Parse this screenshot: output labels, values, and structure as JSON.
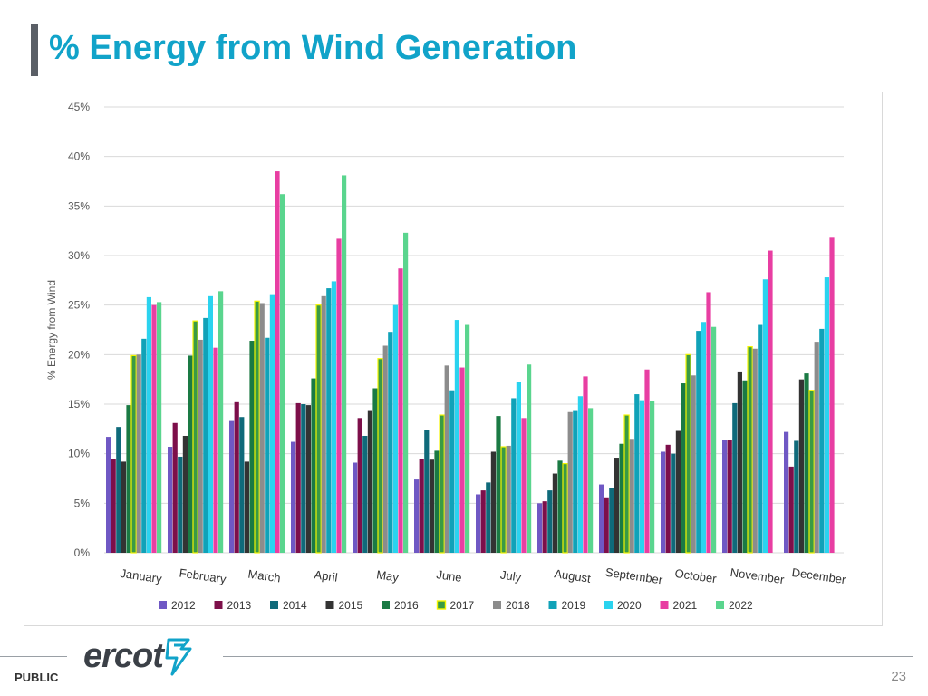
{
  "page": {
    "title": "% Energy from Wind Generation",
    "footer_label": "PUBLIC",
    "page_number": "23",
    "logo_text": "ercot"
  },
  "colors": {
    "title": "#11a3c9",
    "gridline": "#d9d9d9",
    "axis_text": "#595959"
  },
  "chart_data": {
    "type": "bar",
    "ylabel": "% Energy from Wind",
    "xlabel": "",
    "ylim": [
      0,
      45
    ],
    "yticks": [
      0,
      5,
      10,
      15,
      20,
      25,
      30,
      35,
      40,
      45
    ],
    "ytick_labels": [
      "0%",
      "5%",
      "10%",
      "15%",
      "20%",
      "25%",
      "30%",
      "35%",
      "40%",
      "45%"
    ],
    "grid": true,
    "legend_position": "bottom",
    "categories": [
      "January",
      "February",
      "March",
      "April",
      "May",
      "June",
      "July",
      "August",
      "September",
      "October",
      "November",
      "December"
    ],
    "series": [
      {
        "name": "2012",
        "color": "#6f58c4",
        "values": [
          11.7,
          10.7,
          13.3,
          11.2,
          9.1,
          7.4,
          5.9,
          5.0,
          6.9,
          10.2,
          11.4,
          12.2
        ]
      },
      {
        "name": "2013",
        "color": "#7d0f4a",
        "values": [
          9.5,
          13.1,
          15.2,
          15.1,
          13.6,
          9.5,
          6.3,
          5.2,
          5.6,
          10.9,
          11.4,
          8.7
        ]
      },
      {
        "name": "2014",
        "color": "#0f6a7a",
        "values": [
          12.7,
          9.7,
          13.7,
          15.0,
          11.8,
          12.4,
          7.1,
          6.3,
          6.5,
          10.0,
          15.1,
          11.3
        ]
      },
      {
        "name": "2015",
        "color": "#333333",
        "values": [
          9.2,
          11.8,
          9.2,
          14.9,
          14.4,
          9.4,
          10.2,
          8.0,
          9.6,
          12.3,
          18.3,
          17.5
        ]
      },
      {
        "name": "2016",
        "color": "#1a7a44",
        "values": [
          14.9,
          19.9,
          21.4,
          17.6,
          16.6,
          10.3,
          13.8,
          9.3,
          11.0,
          17.1,
          17.4,
          18.1
        ]
      },
      {
        "name": "2017",
        "color": "#3a9a45",
        "border": "#f5f500",
        "values": [
          19.9,
          23.4,
          25.4,
          25.0,
          19.6,
          13.9,
          10.7,
          9.0,
          13.9,
          20.0,
          20.8,
          16.4
        ]
      },
      {
        "name": "2018",
        "color": "#8c8c8c",
        "values": [
          20.0,
          21.5,
          25.2,
          25.9,
          20.9,
          18.9,
          10.8,
          14.2,
          11.5,
          17.9,
          20.6,
          21.3
        ]
      },
      {
        "name": "2019",
        "color": "#10a2b8",
        "values": [
          21.6,
          23.7,
          21.7,
          26.7,
          22.3,
          16.4,
          15.6,
          14.4,
          16.0,
          22.4,
          23.0,
          22.6
        ]
      },
      {
        "name": "2020",
        "color": "#2ad3ef",
        "values": [
          25.8,
          25.9,
          26.1,
          27.4,
          25.0,
          23.5,
          17.2,
          15.8,
          15.4,
          23.3,
          27.6,
          27.8
        ]
      },
      {
        "name": "2021",
        "color": "#e83ea2",
        "values": [
          25.0,
          20.7,
          38.5,
          31.7,
          28.7,
          18.7,
          13.6,
          17.8,
          18.5,
          26.3,
          30.5,
          31.8
        ]
      },
      {
        "name": "2022",
        "color": "#5ad58e",
        "values": [
          25.3,
          26.4,
          36.2,
          38.1,
          32.3,
          23.0,
          19.0,
          14.6,
          15.3,
          22.8,
          null,
          null
        ]
      }
    ]
  }
}
